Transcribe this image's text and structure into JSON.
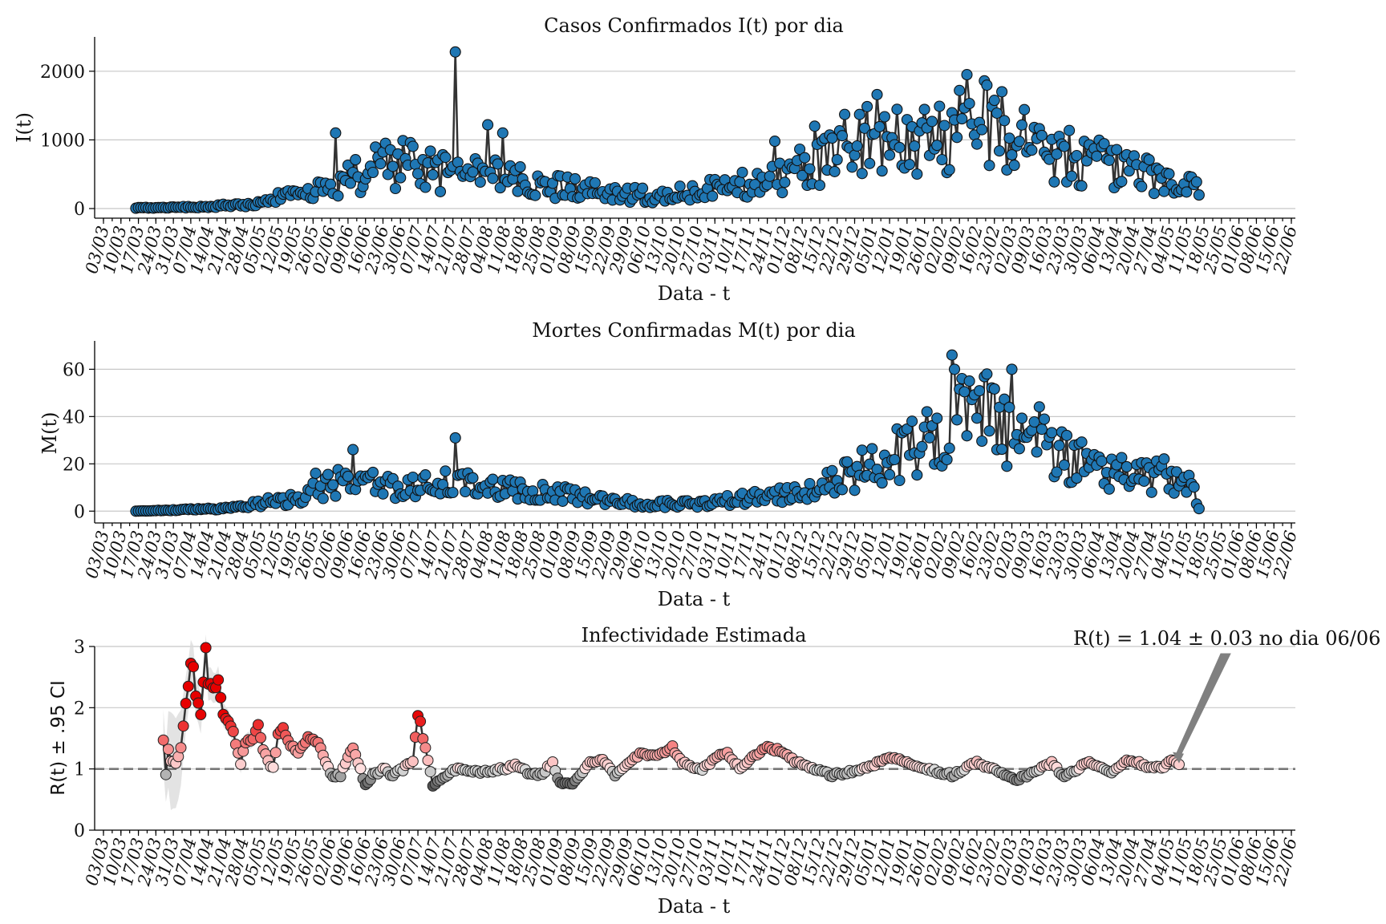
{
  "chart_data": [
    {
      "type": "line",
      "title": "Casos Confirmados I(t) por dia",
      "xlabel": "Data - t",
      "ylabel": "I(t)",
      "ylim": [
        -140,
        2500
      ],
      "yticks": [
        0,
        1000,
        2000
      ],
      "xticklabels": [
        "03/03",
        "10/03",
        "17/03",
        "24/03",
        "31/03",
        "07/04",
        "14/04",
        "21/04",
        "28/04",
        "05/05",
        "12/05",
        "19/05",
        "26/05",
        "02/06",
        "09/06",
        "16/06",
        "23/06",
        "30/06",
        "07/07",
        "14/07",
        "21/07",
        "28/07",
        "04/08",
        "11/08",
        "18/08",
        "25/08",
        "01/09",
        "08/09",
        "15/09",
        "22/09",
        "29/09",
        "06/10",
        "13/10",
        "20/10",
        "27/10",
        "03/11",
        "10/11",
        "17/11",
        "24/11",
        "01/12",
        "08/12",
        "15/12",
        "22/12",
        "29/12",
        "05/01",
        "12/01",
        "19/01",
        "26/01",
        "02/02",
        "09/02",
        "16/02",
        "23/02",
        "02/03",
        "09/03",
        "16/03",
        "23/03",
        "30/03",
        "06/04",
        "13/04",
        "20/04",
        "27/04",
        "04/05",
        "11/05",
        "18/05",
        "25/05",
        "01/06",
        "08/06",
        "15/06",
        "22/06"
      ],
      "start_day": 13,
      "grid": true,
      "marker_color": "#1f77b4",
      "keypoints": [
        [
          13,
          10
        ],
        [
          25,
          15
        ],
        [
          40,
          25
        ],
        [
          50,
          45
        ],
        [
          60,
          60
        ],
        [
          70,
          150
        ],
        [
          80,
          200
        ],
        [
          90,
          300
        ],
        [
          100,
          450
        ],
        [
          110,
          600
        ],
        [
          120,
          650
        ],
        [
          130,
          550
        ],
        [
          140,
          500
        ],
        [
          150,
          550
        ],
        [
          160,
          420
        ],
        [
          170,
          380
        ],
        [
          180,
          330
        ],
        [
          190,
          280
        ],
        [
          200,
          230
        ],
        [
          210,
          200
        ],
        [
          220,
          190
        ],
        [
          230,
          210
        ],
        [
          240,
          260
        ],
        [
          250,
          300
        ],
        [
          260,
          380
        ],
        [
          270,
          450
        ],
        [
          280,
          600
        ],
        [
          290,
          800
        ],
        [
          300,
          950
        ],
        [
          310,
          1000
        ],
        [
          320,
          950
        ],
        [
          330,
          1000
        ],
        [
          340,
          1150
        ],
        [
          350,
          1300
        ],
        [
          360,
          1150
        ],
        [
          370,
          950
        ],
        [
          380,
          850
        ],
        [
          390,
          750
        ],
        [
          400,
          650
        ],
        [
          410,
          520
        ],
        [
          420,
          470
        ],
        [
          430,
          420
        ],
        [
          439,
          300
        ]
      ],
      "spikes": [
        [
          141,
          2280
        ],
        [
          154,
          1220
        ],
        [
          160,
          1100
        ],
        [
          93,
          1100
        ],
        [
          269,
          980
        ],
        [
          285,
          1200
        ],
        [
          310,
          1660
        ],
        [
          346,
          1950
        ],
        [
          353,
          1860
        ]
      ],
      "noise_frac": 0.55
    },
    {
      "type": "line",
      "title": "Mortes Confirmadas M(t) por dia",
      "xlabel": "Data - t",
      "ylabel": "M(t)",
      "ylim": [
        -5,
        72
      ],
      "yticks": [
        0,
        20,
        40,
        60
      ],
      "xticklabels": [
        "03/03",
        "10/03",
        "17/03",
        "24/03",
        "31/03",
        "07/04",
        "14/04",
        "21/04",
        "28/04",
        "05/05",
        "12/05",
        "19/05",
        "26/05",
        "02/06",
        "09/06",
        "16/06",
        "23/06",
        "30/06",
        "07/07",
        "14/07",
        "21/07",
        "28/07",
        "04/08",
        "11/08",
        "18/08",
        "25/08",
        "01/09",
        "08/09",
        "15/09",
        "22/09",
        "29/09",
        "06/10",
        "13/10",
        "20/10",
        "27/10",
        "03/11",
        "10/11",
        "17/11",
        "24/11",
        "01/12",
        "08/12",
        "15/12",
        "22/12",
        "29/12",
        "05/01",
        "12/01",
        "19/01",
        "26/01",
        "02/02",
        "09/02",
        "16/02",
        "23/02",
        "02/03",
        "09/03",
        "16/03",
        "23/03",
        "30/03",
        "06/04",
        "13/04",
        "20/04",
        "27/04",
        "04/05",
        "11/05",
        "18/05",
        "25/05",
        "01/06",
        "08/06",
        "15/06",
        "22/06"
      ],
      "start_day": 13,
      "grid": true,
      "marker_color": "#1f77b4",
      "keypoints": [
        [
          13,
          0
        ],
        [
          30,
          0.5
        ],
        [
          45,
          1
        ],
        [
          55,
          2
        ],
        [
          65,
          4
        ],
        [
          75,
          5
        ],
        [
          85,
          9
        ],
        [
          95,
          12
        ],
        [
          105,
          13
        ],
        [
          115,
          10
        ],
        [
          125,
          10
        ],
        [
          135,
          11
        ],
        [
          145,
          14
        ],
        [
          155,
          10
        ],
        [
          165,
          9
        ],
        [
          175,
          8
        ],
        [
          185,
          7
        ],
        [
          195,
          6
        ],
        [
          205,
          4
        ],
        [
          215,
          3
        ],
        [
          225,
          3
        ],
        [
          235,
          3
        ],
        [
          245,
          4
        ],
        [
          255,
          5
        ],
        [
          265,
          6
        ],
        [
          275,
          7
        ],
        [
          285,
          10
        ],
        [
          295,
          14
        ],
        [
          305,
          18
        ],
        [
          315,
          22
        ],
        [
          325,
          26
        ],
        [
          335,
          35
        ],
        [
          345,
          42
        ],
        [
          355,
          40
        ],
        [
          365,
          35
        ],
        [
          375,
          30
        ],
        [
          385,
          24
        ],
        [
          395,
          20
        ],
        [
          405,
          17
        ],
        [
          415,
          15
        ],
        [
          425,
          15
        ],
        [
          435,
          14
        ],
        [
          439,
          1
        ]
      ],
      "spikes": [
        [
          141,
          31
        ],
        [
          100,
          26
        ],
        [
          85,
          16
        ],
        [
          330,
          42
        ],
        [
          340,
          66
        ],
        [
          341,
          60
        ],
        [
          347,
          55
        ],
        [
          354,
          58
        ],
        [
          364,
          60
        ]
      ],
      "noise_frac": 0.5
    },
    {
      "type": "scatter",
      "title": "Infectividade Estimada",
      "xlabel": "Data - t",
      "ylabel": "R(t) ± .95 CI",
      "ylim": [
        0,
        3
      ],
      "yticks": [
        0,
        1,
        2,
        3
      ],
      "xticklabels": [
        "03/03",
        "10/03",
        "17/03",
        "24/03",
        "31/03",
        "07/04",
        "14/04",
        "21/04",
        "28/04",
        "05/05",
        "12/05",
        "19/05",
        "26/05",
        "02/06",
        "09/06",
        "16/06",
        "23/06",
        "30/06",
        "07/07",
        "14/07",
        "21/07",
        "28/07",
        "04/08",
        "11/08",
        "18/08",
        "25/08",
        "01/09",
        "08/09",
        "15/09",
        "22/09",
        "29/09",
        "06/10",
        "13/10",
        "20/10",
        "27/10",
        "03/11",
        "10/11",
        "17/11",
        "24/11",
        "01/12",
        "08/12",
        "15/12",
        "22/12",
        "29/12",
        "05/01",
        "12/01",
        "19/01",
        "26/01",
        "02/02",
        "09/02",
        "16/02",
        "23/02",
        "02/03",
        "09/03",
        "16/03",
        "23/03",
        "30/03",
        "06/04",
        "13/04",
        "20/04",
        "27/04",
        "04/05",
        "11/05",
        "18/05",
        "25/05",
        "01/06",
        "08/06",
        "15/06",
        "22/06"
      ],
      "start_day": 24,
      "reference_line": 1,
      "grid": true,
      "keypoints": [
        [
          24,
          1.5
        ],
        [
          25,
          0.9
        ],
        [
          26,
          1.3
        ],
        [
          27,
          1.1
        ],
        [
          29,
          1.1
        ],
        [
          31,
          1.35
        ],
        [
          33,
          2.05
        ],
        [
          34,
          2.35
        ],
        [
          35,
          2.7
        ],
        [
          36,
          2.65
        ],
        [
          37,
          2.2
        ],
        [
          39,
          1.9
        ],
        [
          41,
          2.95
        ],
        [
          42,
          2.4
        ],
        [
          45,
          2.3
        ],
        [
          46,
          2.45
        ],
        [
          48,
          1.9
        ],
        [
          50,
          1.75
        ],
        [
          52,
          1.6
        ],
        [
          53,
          1.4
        ],
        [
          55,
          1.1
        ],
        [
          57,
          1.45
        ],
        [
          60,
          1.5
        ],
        [
          62,
          1.7
        ],
        [
          64,
          1.3
        ],
        [
          67,
          1.05
        ],
        [
          68,
          1.0
        ],
        [
          70,
          1.55
        ],
        [
          72,
          1.7
        ],
        [
          74,
          1.45
        ],
        [
          78,
          1.25
        ],
        [
          82,
          1.5
        ],
        [
          86,
          1.45
        ],
        [
          88,
          1.25
        ],
        [
          91,
          0.9
        ],
        [
          95,
          0.9
        ],
        [
          99,
          1.3
        ],
        [
          100,
          1.35
        ],
        [
          102,
          1.1
        ],
        [
          105,
          0.75
        ],
        [
          108,
          0.9
        ],
        [
          112,
          1.0
        ],
        [
          116,
          0.9
        ],
        [
          120,
          1.0
        ],
        [
          124,
          1.15
        ],
        [
          126,
          1.85
        ],
        [
          127,
          1.8
        ],
        [
          128,
          1.5
        ],
        [
          130,
          1.15
        ],
        [
          132,
          0.75
        ],
        [
          135,
          0.8
        ],
        [
          140,
          1.0
        ],
        [
          150,
          0.95
        ],
        [
          160,
          1.0
        ],
        [
          165,
          1.05
        ],
        [
          170,
          0.95
        ],
        [
          175,
          0.9
        ],
        [
          180,
          1.1
        ],
        [
          183,
          0.75
        ],
        [
          187,
          0.75
        ],
        [
          190,
          0.85
        ],
        [
          195,
          1.1
        ],
        [
          200,
          1.15
        ],
        [
          205,
          0.9
        ],
        [
          210,
          1.1
        ],
        [
          215,
          1.25
        ],
        [
          220,
          1.2
        ],
        [
          228,
          1.35
        ],
        [
          232,
          1.1
        ],
        [
          240,
          1.0
        ],
        [
          246,
          1.2
        ],
        [
          250,
          1.25
        ],
        [
          255,
          1.0
        ],
        [
          265,
          1.35
        ],
        [
          272,
          1.3
        ],
        [
          278,
          1.1
        ],
        [
          285,
          1.0
        ],
        [
          292,
          0.9
        ],
        [
          300,
          0.95
        ],
        [
          305,
          1.0
        ],
        [
          310,
          1.1
        ],
        [
          315,
          1.2
        ],
        [
          322,
          1.1
        ],
        [
          330,
          1.0
        ],
        [
          335,
          0.95
        ],
        [
          340,
          0.9
        ],
        [
          345,
          1.0
        ],
        [
          350,
          1.1
        ],
        [
          355,
          1.0
        ],
        [
          360,
          0.95
        ],
        [
          365,
          0.8
        ],
        [
          370,
          0.9
        ],
        [
          375,
          1.0
        ],
        [
          380,
          1.1
        ],
        [
          385,
          0.85
        ],
        [
          390,
          1.0
        ],
        [
          395,
          1.1
        ],
        [
          400,
          1.0
        ],
        [
          405,
          0.95
        ],
        [
          410,
          1.15
        ],
        [
          415,
          1.1
        ],
        [
          420,
          1.0
        ],
        [
          425,
          1.05
        ],
        [
          428,
          1.15
        ],
        [
          431,
          1.05
        ]
      ],
      "ci_keypoints": [
        [
          24,
          0.5
        ],
        [
          25,
          0.45
        ],
        [
          27,
          0.8
        ],
        [
          30,
          0.7
        ],
        [
          33,
          0.45
        ],
        [
          36,
          0.35
        ],
        [
          40,
          0.3
        ],
        [
          44,
          0.25
        ],
        [
          48,
          0.2
        ],
        [
          55,
          0.15
        ],
        [
          65,
          0.1
        ],
        [
          80,
          0.08
        ],
        [
          100,
          0.06
        ],
        [
          200,
          0.04
        ],
        [
          431,
          0.03
        ]
      ],
      "annotation": {
        "text": "R(t) = 1.04 ± 0.03 no dia 06/06",
        "day": 431,
        "value": 1.04
      }
    }
  ]
}
